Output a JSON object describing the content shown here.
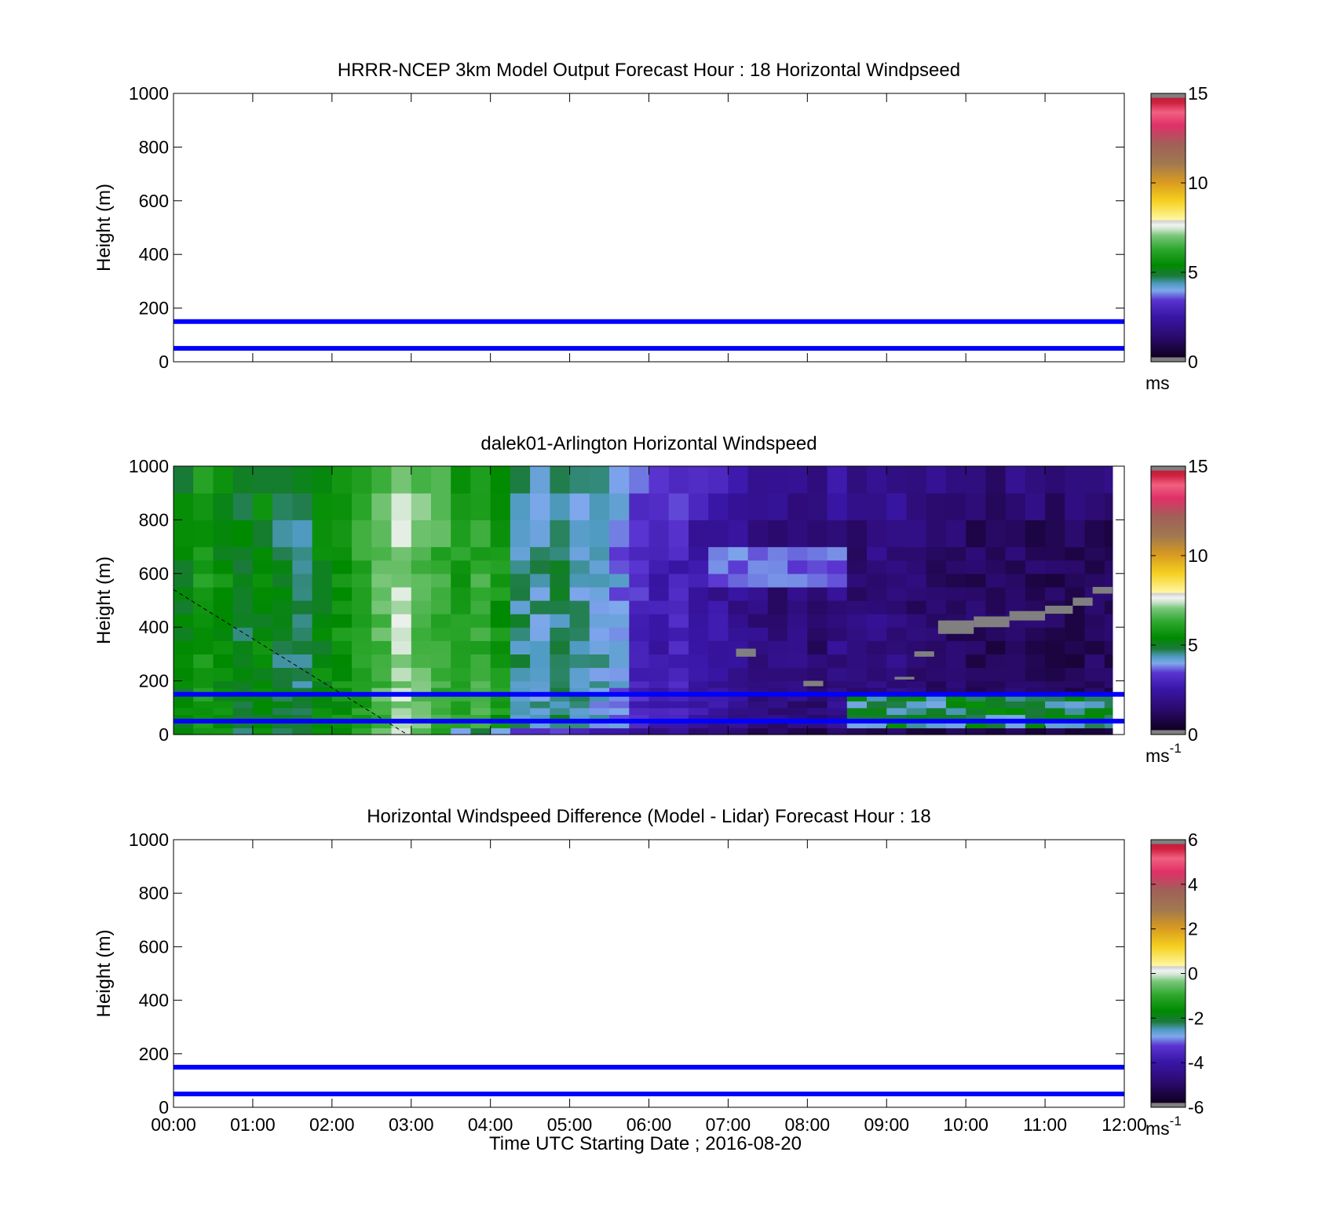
{
  "chart_data": [
    {
      "type": "heatmap",
      "id": "model",
      "title": "HRRR-NCEP 3km Model Output   Forecast Hour : 18 Horizontal Windpseed",
      "ylabel": "Height (m)",
      "xlabel": "",
      "xlim": [
        0,
        12
      ],
      "ylim": [
        0,
        1000
      ],
      "x_ticks": [
        "00:00",
        "01:00",
        "02:00",
        "03:00",
        "04:00",
        "05:00",
        "06:00",
        "07:00",
        "08:00",
        "09:00",
        "10:00",
        "11:00",
        "12:00"
      ],
      "x_tick_labels_shown": false,
      "y_ticks": [
        0,
        200,
        400,
        600,
        800,
        1000
      ],
      "data_present": false,
      "reference_lines_m": [
        50,
        150
      ],
      "reference_line_color": "#0000ff",
      "colorbar": {
        "range": [
          0,
          15
        ],
        "ticks": [
          0,
          5,
          10,
          15
        ],
        "unit": "ms",
        "unit_sup": ""
      }
    },
    {
      "type": "heatmap",
      "id": "lidar",
      "title": "dalek01-Arlington  Horizontal Windspeed",
      "ylabel": "Height (m)",
      "xlabel": "",
      "xlim": [
        0,
        12
      ],
      "ylim": [
        0,
        1000
      ],
      "x_ticks": [
        "00:00",
        "01:00",
        "02:00",
        "03:00",
        "04:00",
        "05:00",
        "06:00",
        "07:00",
        "08:00",
        "09:00",
        "10:00",
        "11:00",
        "12:00"
      ],
      "x_tick_labels_shown": false,
      "y_ticks": [
        0,
        200,
        400,
        600,
        800,
        1000
      ],
      "data_present": true,
      "data_xrange_hours": [
        0,
        11.85
      ],
      "time_step_hours": 0.25,
      "height_levels_m": [
        0,
        25,
        50,
        75,
        100,
        125,
        150,
        175,
        200,
        250,
        300,
        350,
        400,
        450,
        500,
        550,
        600,
        650,
        700,
        800,
        900,
        1000
      ],
      "windspeed_by_time_approx": [
        5.2,
        5.8,
        5.5,
        5.0,
        5.3,
        4.9,
        4.7,
        5.4,
        5.6,
        6.1,
        6.6,
        7.2,
        6.8,
        6.4,
        6.0,
        6.3,
        5.8,
        4.6,
        4.4,
        4.7,
        4.3,
        4.2,
        3.9,
        3.1,
        2.7,
        2.9,
        2.5,
        2.3,
        2.0,
        1.8,
        1.6,
        1.7,
        1.5,
        1.9,
        1.6,
        1.8,
        1.7,
        1.5,
        1.4,
        1.3,
        1.2,
        1.1,
        1.3,
        1.2,
        1.1,
        1.0,
        1.2,
        1.1
      ],
      "low_level_jet": {
        "height_range_m": [
          50,
          150
        ],
        "time_range_hours": [
          8.5,
          11.8
        ],
        "speed_approx": 4.8
      },
      "missing_data_color": "#808080",
      "missing_data_steps": [
        {
          "t": [
            9.65,
            10.1
          ],
          "y": [
            375,
            425
          ]
        },
        {
          "t": [
            10.1,
            10.55
          ],
          "y": [
            400,
            440
          ]
        },
        {
          "t": [
            10.55,
            11.0
          ],
          "y": [
            425,
            460
          ]
        },
        {
          "t": [
            11.0,
            11.35
          ],
          "y": [
            450,
            480
          ]
        },
        {
          "t": [
            11.35,
            11.6
          ],
          "y": [
            480,
            510
          ]
        },
        {
          "t": [
            11.6,
            11.85
          ],
          "y": [
            525,
            550
          ]
        },
        {
          "t": [
            7.1,
            7.35
          ],
          "y": [
            290,
            320
          ]
        },
        {
          "t": [
            7.95,
            8.2
          ],
          "y": [
            180,
            200
          ]
        },
        {
          "t": [
            9.35,
            9.6
          ],
          "y": [
            290,
            310
          ]
        },
        {
          "t": [
            9.1,
            9.35
          ],
          "y": [
            205,
            215
          ]
        }
      ],
      "dashed_line": {
        "from": [
          0,
          540
        ],
        "to": [
          2.95,
          0
        ]
      },
      "reference_lines_m": [
        50,
        150
      ],
      "reference_line_color": "#0000ff",
      "colorbar": {
        "range": [
          0,
          15
        ],
        "ticks": [
          0,
          5,
          10,
          15
        ],
        "unit": "ms",
        "unit_sup": "-1"
      }
    },
    {
      "type": "heatmap",
      "id": "difference",
      "title": "Horizontal Windspeed Difference (Model - Lidar) Forecast Hour : 18",
      "ylabel": "Height (m)",
      "xlabel": "Time UTC  Starting Date ; 2016-08-20",
      "xlim": [
        0,
        12
      ],
      "ylim": [
        0,
        1000
      ],
      "x_ticks": [
        "00:00",
        "01:00",
        "02:00",
        "03:00",
        "04:00",
        "05:00",
        "06:00",
        "07:00",
        "08:00",
        "09:00",
        "10:00",
        "11:00",
        "12:00"
      ],
      "x_tick_labels_shown": true,
      "y_ticks": [
        0,
        200,
        400,
        600,
        800,
        1000
      ],
      "data_present": false,
      "reference_lines_m": [
        50,
        150
      ],
      "reference_line_color": "#0000ff",
      "colorbar": {
        "range": [
          -6,
          6
        ],
        "ticks": [
          -6,
          -4,
          -2,
          0,
          2,
          4,
          6
        ],
        "unit": "ms",
        "unit_sup": "-1"
      }
    }
  ],
  "colormap_stops": [
    [
      0.0,
      "#808080"
    ],
    [
      0.016,
      "#808080"
    ],
    [
      0.017,
      "#100020"
    ],
    [
      0.09,
      "#2a0a6a"
    ],
    [
      0.17,
      "#3a16a8"
    ],
    [
      0.23,
      "#5a34d0"
    ],
    [
      0.265,
      "#7ea8ec"
    ],
    [
      0.29,
      "#4f9bc2"
    ],
    [
      0.32,
      "#1a7a3a"
    ],
    [
      0.36,
      "#008a00"
    ],
    [
      0.42,
      "#2ea82e"
    ],
    [
      0.47,
      "#7ac67a"
    ],
    [
      0.495,
      "#cfe6cf"
    ],
    [
      0.51,
      "#f2f2f2"
    ],
    [
      0.525,
      "#d0d0d0"
    ],
    [
      0.53,
      "#fff7a0"
    ],
    [
      0.6,
      "#f5d020"
    ],
    [
      0.67,
      "#d89a20"
    ],
    [
      0.74,
      "#a07850"
    ],
    [
      0.81,
      "#a06058"
    ],
    [
      0.88,
      "#e03068"
    ],
    [
      0.93,
      "#f06080"
    ],
    [
      0.965,
      "#d02040"
    ],
    [
      0.983,
      "#c0203a"
    ],
    [
      0.984,
      "#808080"
    ],
    [
      1.0,
      "#808080"
    ]
  ]
}
